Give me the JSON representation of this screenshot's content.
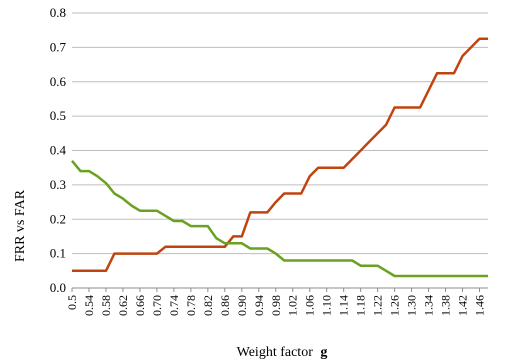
{
  "chart_data": {
    "type": "line",
    "title": "",
    "xlabel": "Weight factor",
    "xlabel_symbol": "g",
    "ylabel": "FRR vs FAR",
    "ylim": [
      0,
      0.8
    ],
    "yticks": [
      "0.0",
      "0.1",
      "0.2",
      "0.3",
      "0.4",
      "0.5",
      "0.6",
      "0.7",
      "0.8"
    ],
    "grid": "horizontal",
    "x": [
      0.5,
      0.52,
      0.54,
      0.56,
      0.58,
      0.6,
      0.62,
      0.64,
      0.66,
      0.68,
      0.7,
      0.72,
      0.74,
      0.76,
      0.78,
      0.8,
      0.82,
      0.84,
      0.86,
      0.88,
      0.9,
      0.92,
      0.94,
      0.96,
      0.98,
      1.0,
      1.02,
      1.04,
      1.06,
      1.08,
      1.1,
      1.12,
      1.14,
      1.16,
      1.18,
      1.2,
      1.22,
      1.24,
      1.26,
      1.28,
      1.3,
      1.32,
      1.34,
      1.36,
      1.38,
      1.4,
      1.42,
      1.44,
      1.46,
      1.48
    ],
    "xtick_labels": [
      "0.5",
      "0.54",
      "0.58",
      "0.62",
      "0.66",
      "0.70",
      "0.74",
      "0.78",
      "0.82",
      "0.86",
      "0.90",
      "0.94",
      "0.98",
      "1.02",
      "1.06",
      "1.10",
      "1.14",
      "1.18",
      "1.22",
      "1.26",
      "1.30",
      "1.34",
      "1.38",
      "1.42",
      "1.46"
    ],
    "series": [
      {
        "color": "#c0440f",
        "values": [
          0.05,
          0.05,
          0.05,
          0.05,
          0.05,
          0.1,
          0.1,
          0.1,
          0.1,
          0.1,
          0.1,
          0.12,
          0.12,
          0.12,
          0.12,
          0.12,
          0.12,
          0.12,
          0.12,
          0.15,
          0.15,
          0.22,
          0.22,
          0.22,
          0.25,
          0.275,
          0.275,
          0.275,
          0.325,
          0.35,
          0.35,
          0.35,
          0.35,
          0.375,
          0.4,
          0.425,
          0.45,
          0.475,
          0.525,
          0.525,
          0.525,
          0.525,
          0.575,
          0.625,
          0.625,
          0.625,
          0.675,
          0.7,
          0.725,
          0.725
        ]
      },
      {
        "color": "#6aa121",
        "values": [
          0.37,
          0.34,
          0.34,
          0.325,
          0.305,
          0.275,
          0.26,
          0.24,
          0.225,
          0.225,
          0.225,
          0.21,
          0.195,
          0.195,
          0.18,
          0.18,
          0.18,
          0.145,
          0.13,
          0.13,
          0.13,
          0.115,
          0.115,
          0.115,
          0.1,
          0.08,
          0.08,
          0.08,
          0.08,
          0.08,
          0.08,
          0.08,
          0.08,
          0.08,
          0.065,
          0.065,
          0.065,
          0.05,
          0.035,
          0.035,
          0.035,
          0.035,
          0.035,
          0.035,
          0.035,
          0.035,
          0.035,
          0.035,
          0.035,
          0.035
        ]
      }
    ]
  }
}
